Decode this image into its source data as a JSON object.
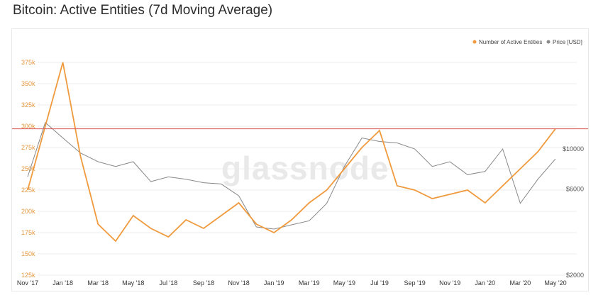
{
  "title": "Bitcoin: Active Entities (7d Moving Average)",
  "watermark": "glassnode",
  "colors": {
    "entities": "#f09a3e",
    "price": "#888888",
    "threshold": "#d9534f",
    "grid": "#eeeeee"
  },
  "chart_data": {
    "type": "line",
    "title": "Bitcoin: Active Entities (7d Moving Average)",
    "legend_position": "top-right",
    "grid": true,
    "x_ticks": [
      "Nov '17",
      "Jan '18",
      "Mar '18",
      "May '18",
      "Jul '18",
      "Sep '18",
      "Nov '18",
      "Jan '19",
      "Mar '19",
      "May '19",
      "Jul '19",
      "Sep '19",
      "Nov '19",
      "Jan '20",
      "Mar '20",
      "May '20"
    ],
    "y_left": {
      "ticks": [
        "125k",
        "150k",
        "175k",
        "200k",
        "225k",
        "250k",
        "275k",
        "300k",
        "325k",
        "350k",
        "375k"
      ],
      "range": [
        125000,
        375000
      ]
    },
    "y_right": {
      "ticks": [
        "$2000",
        "$6000",
        "$10000"
      ],
      "scale": "log"
    },
    "threshold_line": {
      "value": 297000
    },
    "x": [
      "2017-11",
      "2017-12",
      "2018-01",
      "2018-02",
      "2018-03",
      "2018-04",
      "2018-05",
      "2018-06",
      "2018-07",
      "2018-08",
      "2018-09",
      "2018-10",
      "2018-11",
      "2018-12",
      "2019-01",
      "2019-02",
      "2019-03",
      "2019-04",
      "2019-05",
      "2019-06",
      "2019-07",
      "2019-08",
      "2019-09",
      "2019-10",
      "2019-11",
      "2019-12",
      "2020-01",
      "2020-02",
      "2020-03",
      "2020-04",
      "2020-05"
    ],
    "series": [
      {
        "name": "Number of Active Entities",
        "axis": "left",
        "values": [
          225000,
          300000,
          375000,
          265000,
          185000,
          165000,
          195000,
          180000,
          170000,
          190000,
          180000,
          195000,
          210000,
          185000,
          175000,
          190000,
          210000,
          225000,
          250000,
          275000,
          295000,
          230000,
          225000,
          215000,
          220000,
          225000,
          210000,
          230000,
          250000,
          270000,
          297000
        ]
      },
      {
        "name": "Price [USD]",
        "axis": "right",
        "values": [
          7000,
          14000,
          11500,
          9500,
          8500,
          8000,
          8500,
          6600,
          7000,
          6800,
          6500,
          6400,
          5500,
          3700,
          3600,
          3800,
          4000,
          5000,
          8000,
          11500,
          11000,
          10800,
          10000,
          8000,
          8500,
          7200,
          7500,
          10000,
          5000,
          6800,
          8800
        ]
      }
    ]
  }
}
